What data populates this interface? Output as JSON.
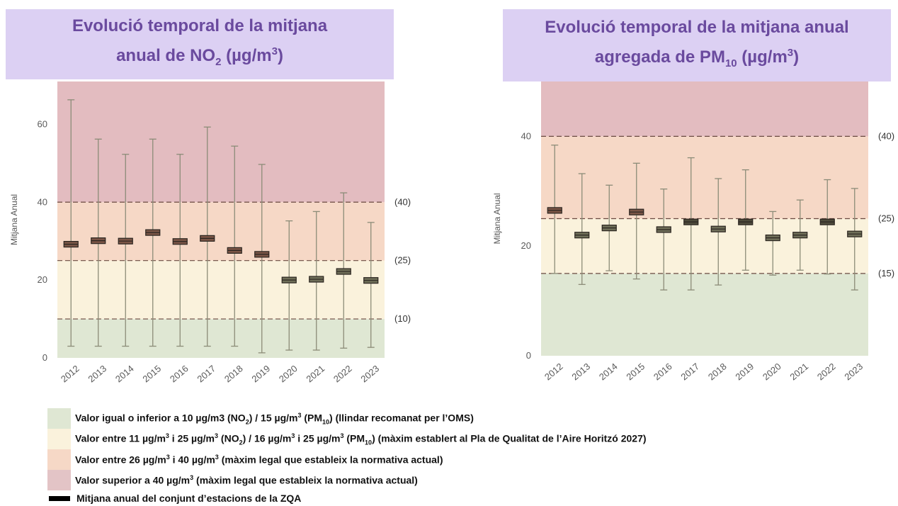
{
  "titles": {
    "left": {
      "line1": "Evolució temporal de la mitjana",
      "line2_pre": "anual de NO",
      "line2_sub": "2",
      "line2_mid": " (µg/m",
      "line2_sup": "3",
      "line2_post": ")"
    },
    "right": {
      "line1": "Evolució temporal de la mitjana anual",
      "line2_pre": "agregada de PM",
      "line2_sub": "10",
      "line2_mid": " (µg/m",
      "line2_sup": "3",
      "line2_post": ")"
    }
  },
  "colors": {
    "band_green": "#dfe7d3",
    "band_yellow": "#faf2dc",
    "band_orange": "#f6d8c6",
    "band_red": "#e3bcc0",
    "whisker": "#8c8c78",
    "threshold_line": "#6b4a42"
  },
  "chart_data": [
    {
      "type": "box",
      "ylabel": "Mitjana Anual",
      "ylim": [
        0,
        71
      ],
      "yticks": [
        0,
        20,
        40,
        60
      ],
      "categories": [
        "2012",
        "2013",
        "2014",
        "2015",
        "2016",
        "2017",
        "2018",
        "2019",
        "2020",
        "2021",
        "2022",
        "2023"
      ],
      "series": [
        {
          "mean": [
            29.2,
            30.1,
            30,
            32.2,
            29.9,
            30.7,
            27.6,
            26.6,
            20,
            20.2,
            22.2,
            19.9
          ],
          "min": [
            3,
            3,
            3,
            3,
            3,
            3,
            3,
            1.3,
            2,
            2,
            2.5,
            2.7
          ],
          "max": [
            66.3,
            56.2,
            52.3,
            56.2,
            52.3,
            59.3,
            54.4,
            49.7,
            35.2,
            37.6,
            42.4,
            34.8
          ]
        }
      ],
      "bands": [
        {
          "from": 0,
          "to": 10,
          "color": "green"
        },
        {
          "from": 10,
          "to": 25,
          "color": "yellow"
        },
        {
          "from": 25,
          "to": 40,
          "color": "orange"
        },
        {
          "from": 40,
          "to": 71,
          "color": "red"
        }
      ],
      "thresholds": [
        {
          "value": 40,
          "label": "(40)"
        },
        {
          "value": 25,
          "label": "(25)"
        },
        {
          "value": 10,
          "label": "(10)"
        }
      ]
    },
    {
      "type": "box",
      "ylabel": "Mitjana Anual",
      "ylim": [
        0,
        50
      ],
      "yticks": [
        0,
        20,
        40
      ],
      "categories": [
        "2012",
        "2013",
        "2014",
        "2015",
        "2016",
        "2017",
        "2018",
        "2019",
        "2020",
        "2021",
        "2022",
        "2023"
      ],
      "series": [
        {
          "mean": [
            26.5,
            22,
            23.3,
            26.2,
            23,
            24.4,
            23.1,
            24.4,
            21.5,
            22,
            24.4,
            22.2
          ],
          "min": [
            15,
            13,
            15.5,
            14,
            12,
            12,
            12.9,
            15.6,
            14.7,
            15.6,
            14.9,
            12
          ],
          "max": [
            38.4,
            33.2,
            31.1,
            35.1,
            30.4,
            36.1,
            32.3,
            33.9,
            26.3,
            28.4,
            32.1,
            30.5
          ]
        }
      ],
      "bands": [
        {
          "from": 0,
          "to": 15,
          "color": "green"
        },
        {
          "from": 15,
          "to": 25,
          "color": "yellow"
        },
        {
          "from": 25,
          "to": 40,
          "color": "orange"
        },
        {
          "from": 40,
          "to": 50,
          "color": "red"
        }
      ],
      "thresholds": [
        {
          "value": 40,
          "label": "(40)"
        },
        {
          "value": 25,
          "label": "(25)"
        },
        {
          "value": 15,
          "label": "(15)"
        }
      ]
    }
  ],
  "legend": {
    "row1": {
      "pre": "Valor igual o inferior a 10 µg/m3 (NO",
      "s1": "2",
      "mid": ") / 15 µg/m",
      "s2": "3",
      "mid2": " (PM",
      "s3": "10",
      "post": ") (llindar recomanat per l’OMS)"
    },
    "row2": {
      "pre": "Valor entre 11 µg/m",
      "s1": "3",
      "a": " i 25 µg/m",
      "s2": "3",
      "b": " (NO",
      "s3": "2",
      "c": ") / 16 µg/m",
      "s4": "3",
      "d": " i 25 µg/m",
      "s5": "3",
      "e": " (PM",
      "s6": "10",
      "post": ") (màxim establert al Pla de Qualitat de l’Aire Horitzó 2027)"
    },
    "row3": {
      "pre": "Valor entre 26 µg/m",
      "s1": "3",
      "a": " i 40 µg/m",
      "s2": "3",
      "post": " (màxim legal que estableix la normativa actual)"
    },
    "row4": {
      "pre": "Valor superior a 40 µg/m",
      "s1": "3",
      "post": " (màxim legal que estableix la normativa actual)"
    },
    "row5": {
      "text": "Mitjana anual del conjunt d’estacions de la ZQA"
    }
  }
}
